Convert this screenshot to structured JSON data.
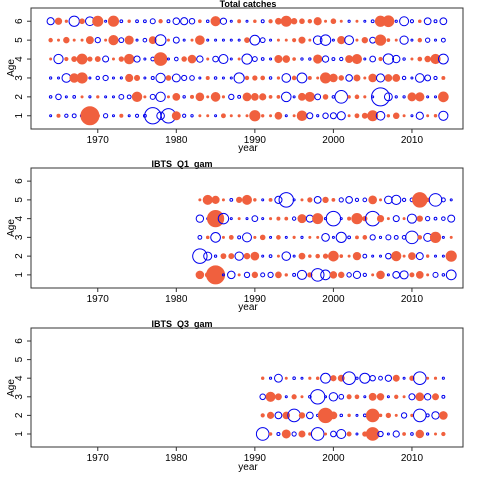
{
  "chart_data": [
    {
      "type": "scatter",
      "title": "Total catches",
      "xlabel": "year",
      "ylabel": "Age",
      "xticks": [
        1970,
        1980,
        1990,
        2000,
        2010
      ],
      "yticks": [
        1,
        2,
        3,
        4,
        5,
        6
      ],
      "xlim": [
        1961.5,
        2016.5
      ],
      "ylim": [
        0.3,
        6.7
      ],
      "year_range": [
        1964,
        2014
      ],
      "ages": [
        1,
        2,
        3,
        4,
        5,
        6
      ],
      "legend": "none",
      "colors": {
        "positive": "#f0603e",
        "negative": "#0000ee"
      },
      "highlights": [
        {
          "year": 1969,
          "age": 1,
          "sign": "positive",
          "size": 1.0
        },
        {
          "year": 1977,
          "age": 1,
          "sign": "negative",
          "size": 0.9
        },
        {
          "year": 1979,
          "age": 1,
          "sign": "negative",
          "size": 0.8
        },
        {
          "year": 2006,
          "age": 2,
          "sign": "negative",
          "size": 1.0
        },
        {
          "year": 2001,
          "age": 2,
          "sign": "negative",
          "size": 0.7
        },
        {
          "year": 1978,
          "age": 5,
          "sign": "negative",
          "size": 0.6
        },
        {
          "year": 1986,
          "age": 4,
          "sign": "negative",
          "size": 0.5
        },
        {
          "year": 1978,
          "age": 4,
          "sign": "positive",
          "size": 0.7
        },
        {
          "year": 2007,
          "age": 6,
          "sign": "positive",
          "size": 0.6
        }
      ]
    },
    {
      "type": "scatter",
      "title": "IBTS_Q1_gam",
      "xlabel": "year",
      "ylabel": "Age",
      "xticks": [
        1970,
        1980,
        1990,
        2000,
        2010
      ],
      "yticks": [
        1,
        2,
        3,
        4,
        5,
        6
      ],
      "xlim": [
        1961.5,
        2016.5
      ],
      "ylim": [
        0.3,
        6.7
      ],
      "year_range": [
        1983,
        2015
      ],
      "ages": [
        1,
        2,
        3,
        4,
        5
      ],
      "legend": "none",
      "colors": {
        "positive": "#f0603e",
        "negative": "#0000ee"
      },
      "highlights": [
        {
          "year": 1985,
          "age": 1,
          "sign": "positive",
          "size": 1.0
        },
        {
          "year": 1983,
          "age": 2,
          "sign": "negative",
          "size": 0.8
        },
        {
          "year": 1985,
          "age": 4,
          "sign": "positive",
          "size": 0.9
        },
        {
          "year": 1994,
          "age": 5,
          "sign": "negative",
          "size": 0.8
        },
        {
          "year": 2005,
          "age": 4,
          "sign": "negative",
          "size": 0.8
        },
        {
          "year": 2000,
          "age": 4,
          "sign": "negative",
          "size": 0.8
        },
        {
          "year": 2010,
          "age": 3,
          "sign": "negative",
          "size": 0.7
        },
        {
          "year": 2013,
          "age": 5,
          "sign": "negative",
          "size": 0.7
        },
        {
          "year": 1998,
          "age": 1,
          "sign": "negative",
          "size": 0.7
        },
        {
          "year": 2011,
          "age": 5,
          "sign": "positive",
          "size": 0.8
        }
      ]
    },
    {
      "type": "scatter",
      "title": "IBTS_Q3_gam",
      "xlabel": "year",
      "ylabel": "Age",
      "xticks": [
        1970,
        1980,
        1990,
        2000,
        2010
      ],
      "yticks": [
        1,
        2,
        3,
        4,
        5,
        6
      ],
      "xlim": [
        1961.5,
        2016.5
      ],
      "ylim": [
        0.3,
        6.7
      ],
      "year_range": [
        1991,
        2014
      ],
      "ages": [
        1,
        2,
        3,
        4
      ],
      "legend": "none",
      "colors": {
        "positive": "#f0603e",
        "negative": "#0000ee"
      },
      "highlights": [
        {
          "year": 1991,
          "age": 1,
          "sign": "negative",
          "size": 0.7
        },
        {
          "year": 1998,
          "age": 1,
          "sign": "negative",
          "size": 0.7
        },
        {
          "year": 1999,
          "age": 2,
          "sign": "positive",
          "size": 0.8
        },
        {
          "year": 1995,
          "age": 2,
          "sign": "negative",
          "size": 0.7
        },
        {
          "year": 1998,
          "age": 3,
          "sign": "negative",
          "size": 0.8
        },
        {
          "year": 2002,
          "age": 4,
          "sign": "negative",
          "size": 0.7
        },
        {
          "year": 2011,
          "age": 4,
          "sign": "negative",
          "size": 0.7
        },
        {
          "year": 2011,
          "age": 2,
          "sign": "negative",
          "size": 0.7
        },
        {
          "year": 2005,
          "age": 2,
          "sign": "positive",
          "size": 0.7
        },
        {
          "year": 2005,
          "age": 1,
          "sign": "positive",
          "size": 0.7
        }
      ]
    }
  ]
}
